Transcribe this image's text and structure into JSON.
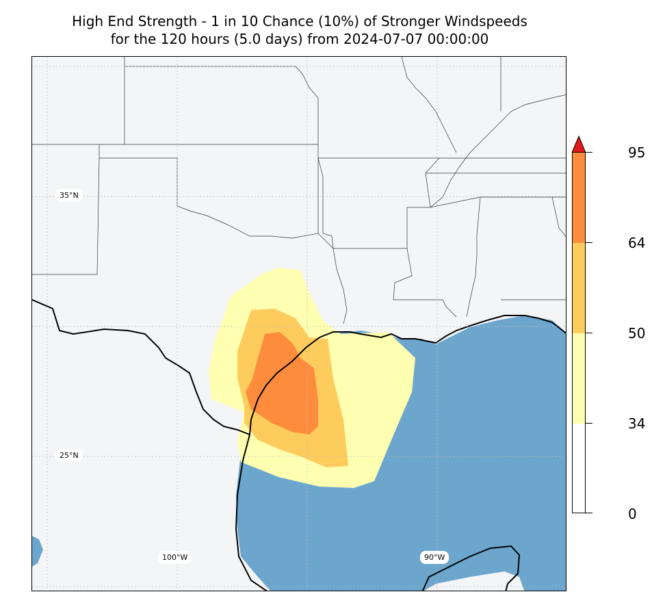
{
  "title": {
    "line1": "High End Strength - 1 in 10 Chance (10%) of Stronger Windspeeds",
    "line2": "for the 120 hours (5.0 days) from 2024-07-07 00:00:00"
  },
  "map": {
    "land_color": "#f4f5f7",
    "ocean_color": "#6ca6cd",
    "gridline_labels": {
      "lat_35": "35°N",
      "lat_25": "25°N",
      "lon_100": "100°W",
      "lon_90": "90°W"
    }
  },
  "colorbar": {
    "ticks": [
      "0",
      "34",
      "50",
      "64",
      "95"
    ],
    "colors": {
      "band_0_34": "#ffffff",
      "band_34_50": "#ffffb2",
      "band_50_64": "#fecc5c",
      "band_64_95": "#fd8d3c",
      "over_95": "#e31a1c"
    }
  }
}
